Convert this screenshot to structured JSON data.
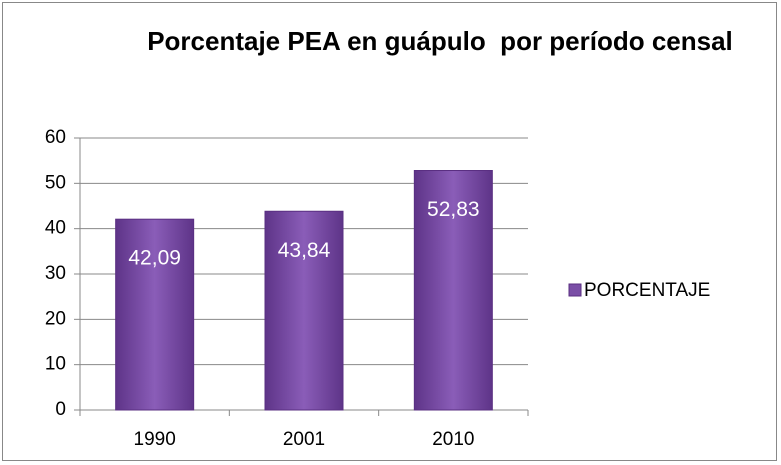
{
  "chart_data": {
    "type": "bar",
    "title": "Porcentaje PEA en guápulo  por período censal",
    "categories": [
      "1990",
      "2001",
      "2010"
    ],
    "series": [
      {
        "name": "PORCENTAJE",
        "color": "#7a4ea6",
        "values": [
          42.09,
          43.84,
          52.83
        ],
        "value_labels": [
          "42,09",
          "43,84",
          "52,83"
        ]
      }
    ],
    "ylim": [
      0,
      60
    ],
    "yticks": [
      0,
      10,
      20,
      30,
      40,
      50,
      60
    ],
    "grid": true,
    "legend": "right"
  }
}
